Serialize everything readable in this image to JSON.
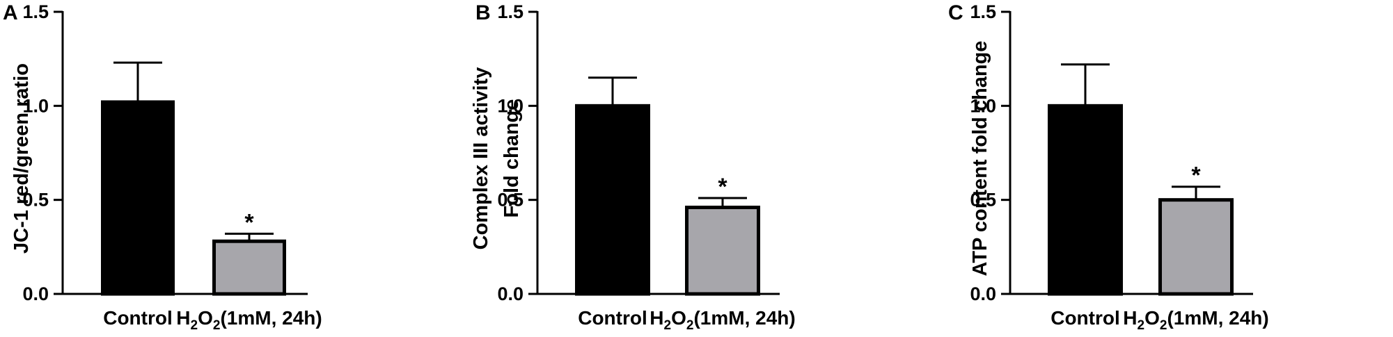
{
  "chart_data": [
    {
      "type": "bar",
      "panel_label": "A",
      "categories": [
        "Control",
        "H2O2(1mM, 24h)"
      ],
      "category_display": [
        {
          "parts": [
            {
              "t": "Control",
              "sub": false
            }
          ]
        },
        {
          "parts": [
            {
              "t": "H",
              "sub": false
            },
            {
              "t": "2",
              "sub": true
            },
            {
              "t": "O",
              "sub": false
            },
            {
              "t": "2",
              "sub": true
            },
            {
              "t": "(1mM, 24h)",
              "sub": false
            }
          ]
        }
      ],
      "values": [
        1.02,
        0.28
      ],
      "errors": [
        0.21,
        0.04
      ],
      "significance": [
        "",
        "*"
      ],
      "bar_colors": [
        "#000000",
        "#a7a6ab"
      ],
      "ylabel_lines": [
        "JC-1 red/green ratio"
      ],
      "xlabel": "",
      "ylim": [
        0,
        1.5
      ],
      "yticks": [
        0,
        0.5,
        1.0,
        1.5
      ],
      "ytick_labels": [
        "0.0",
        "0.5",
        "1.0",
        "1.5"
      ],
      "grid": false
    },
    {
      "type": "bar",
      "panel_label": "B",
      "categories": [
        "Control",
        "H2O2(1mM, 24h)"
      ],
      "category_display": [
        {
          "parts": [
            {
              "t": "Control",
              "sub": false
            }
          ]
        },
        {
          "parts": [
            {
              "t": "H",
              "sub": false
            },
            {
              "t": "2",
              "sub": true
            },
            {
              "t": "O",
              "sub": false
            },
            {
              "t": "2",
              "sub": true
            },
            {
              "t": "(1mM, 24h)",
              "sub": false
            }
          ]
        }
      ],
      "values": [
        1.0,
        0.46
      ],
      "errors": [
        0.15,
        0.05
      ],
      "significance": [
        "",
        "*"
      ],
      "bar_colors": [
        "#000000",
        "#a7a6ab"
      ],
      "ylabel_lines": [
        "Complex III activity",
        "Fold change"
      ],
      "xlabel": "",
      "ylim": [
        0,
        1.5
      ],
      "yticks": [
        0,
        0.5,
        1.0,
        1.5
      ],
      "ytick_labels": [
        "0.0",
        "0.5",
        "1.0",
        "1.5"
      ],
      "grid": false
    },
    {
      "type": "bar",
      "panel_label": "C",
      "categories": [
        "Control",
        "H2O2(1mM, 24h)"
      ],
      "category_display": [
        {
          "parts": [
            {
              "t": "Control",
              "sub": false
            }
          ]
        },
        {
          "parts": [
            {
              "t": "H",
              "sub": false
            },
            {
              "t": "2",
              "sub": true
            },
            {
              "t": "O",
              "sub": false
            },
            {
              "t": "2",
              "sub": true
            },
            {
              "t": "(1mM, 24h)",
              "sub": false
            }
          ]
        }
      ],
      "values": [
        1.0,
        0.5
      ],
      "errors": [
        0.22,
        0.07
      ],
      "significance": [
        "",
        "*"
      ],
      "bar_colors": [
        "#000000",
        "#a7a6ab"
      ],
      "ylabel_lines": [
        "ATP content fold change"
      ],
      "xlabel": "",
      "ylim": [
        0,
        1.5
      ],
      "yticks": [
        0,
        0.5,
        1.0,
        1.5
      ],
      "ytick_labels": [
        "0.0",
        "0.5",
        "1.0",
        "1.5"
      ],
      "grid": false
    }
  ]
}
